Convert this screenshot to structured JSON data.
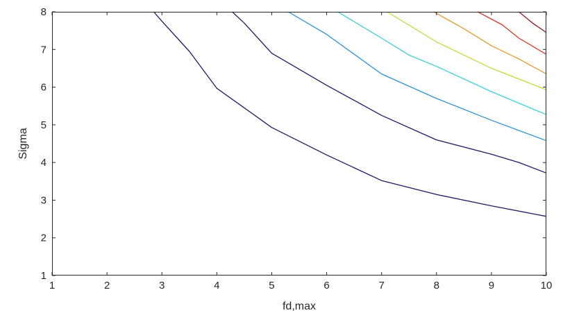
{
  "chart_data": {
    "type": "line",
    "plot_kind": "contour",
    "title": "",
    "xlabel": "fd,max",
    "ylabel": "Sigma",
    "xlim": [
      1,
      10
    ],
    "ylim": [
      1,
      8
    ],
    "xticks": [
      "1",
      "2",
      "3",
      "4",
      "5",
      "6",
      "7",
      "8",
      "9",
      "10"
    ],
    "yticks": [
      "1",
      "2",
      "3",
      "4",
      "5",
      "6",
      "7",
      "8"
    ],
    "grid": false,
    "legend": "none",
    "series": [
      {
        "color": "#1a1a66",
        "points": [
          [
            2.85,
            8.0
          ],
          [
            3.0,
            7.75
          ],
          [
            3.5,
            6.95
          ],
          [
            4.0,
            5.97
          ],
          [
            5.0,
            4.93
          ],
          [
            6.0,
            4.2
          ],
          [
            7.0,
            3.52
          ],
          [
            8.0,
            3.15
          ],
          [
            9.0,
            2.85
          ],
          [
            10.0,
            2.57
          ]
        ]
      },
      {
        "color": "#1a1a66",
        "points": [
          [
            4.28,
            8.0
          ],
          [
            4.5,
            7.7
          ],
          [
            5.0,
            6.9
          ],
          [
            6.0,
            6.05
          ],
          [
            7.0,
            5.25
          ],
          [
            8.0,
            4.6
          ],
          [
            9.0,
            4.22
          ],
          [
            9.5,
            4.0
          ],
          [
            10.0,
            3.72
          ]
        ]
      },
      {
        "color": "#2a8fd6",
        "points": [
          [
            5.3,
            8.0
          ],
          [
            6.0,
            7.4
          ],
          [
            7.0,
            6.35
          ],
          [
            8.0,
            5.7
          ],
          [
            9.0,
            5.12
          ],
          [
            10.0,
            4.58
          ]
        ]
      },
      {
        "color": "#3ad0d6",
        "points": [
          [
            6.2,
            8.0
          ],
          [
            7.0,
            7.3
          ],
          [
            7.5,
            6.85
          ],
          [
            8.0,
            6.55
          ],
          [
            9.0,
            5.88
          ],
          [
            10.0,
            5.27
          ]
        ]
      },
      {
        "color": "#c9d93a",
        "points": [
          [
            7.1,
            8.0
          ],
          [
            8.0,
            7.2
          ],
          [
            9.0,
            6.5
          ],
          [
            10.0,
            5.93
          ]
        ]
      },
      {
        "color": "#e59a2a",
        "points": [
          [
            7.95,
            8.0
          ],
          [
            8.5,
            7.55
          ],
          [
            9.0,
            7.1
          ],
          [
            9.5,
            6.75
          ],
          [
            10.0,
            6.35
          ]
        ]
      },
      {
        "color": "#d13a2a",
        "points": [
          [
            8.75,
            8.0
          ],
          [
            9.2,
            7.65
          ],
          [
            9.5,
            7.3
          ],
          [
            10.0,
            6.87
          ]
        ]
      },
      {
        "color": "#8b1a1a",
        "points": [
          [
            9.5,
            8.0
          ],
          [
            9.75,
            7.7
          ],
          [
            10.0,
            7.45
          ]
        ]
      }
    ]
  }
}
